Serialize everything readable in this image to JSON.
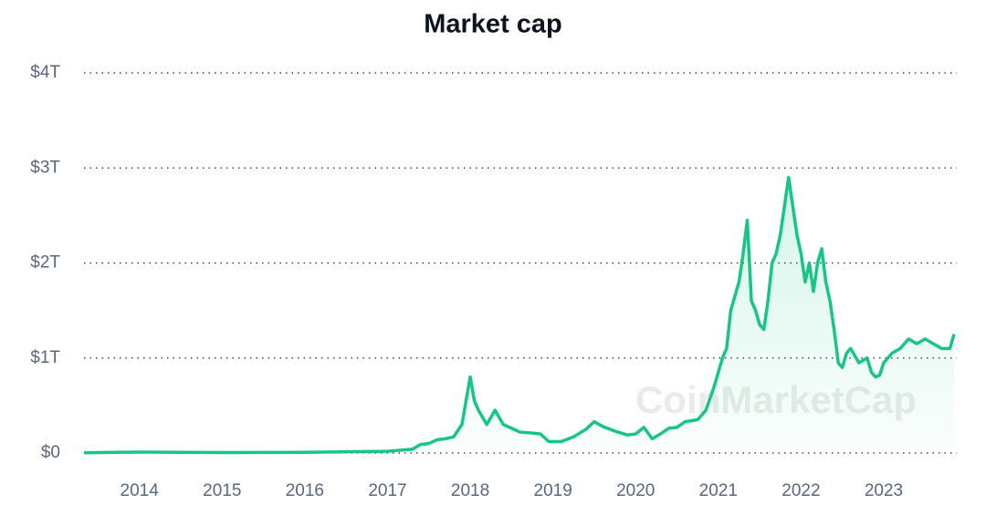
{
  "chart_data": {
    "type": "line",
    "title": "Market cap",
    "watermark": "CoinMarketCap",
    "x": [
      2013.33,
      2014.0,
      2015.0,
      2016.0,
      2017.0,
      2017.3,
      2017.4,
      2017.5,
      2017.6,
      2017.7,
      2017.8,
      2017.9,
      2017.95,
      2018.0,
      2018.05,
      2018.1,
      2018.2,
      2018.3,
      2018.4,
      2018.5,
      2018.6,
      2018.75,
      2018.85,
      2018.95,
      2019.1,
      2019.25,
      2019.4,
      2019.5,
      2019.6,
      2019.75,
      2019.9,
      2020.0,
      2020.1,
      2020.2,
      2020.3,
      2020.4,
      2020.5,
      2020.6,
      2020.75,
      2020.85,
      2020.95,
      2021.05,
      2021.1,
      2021.15,
      2021.25,
      2021.3,
      2021.35,
      2021.4,
      2021.45,
      2021.5,
      2021.55,
      2021.6,
      2021.65,
      2021.7,
      2021.75,
      2021.8,
      2021.85,
      2021.9,
      2021.95,
      2022.0,
      2022.05,
      2022.1,
      2022.15,
      2022.2,
      2022.25,
      2022.3,
      2022.35,
      2022.4,
      2022.45,
      2022.5,
      2022.55,
      2022.6,
      2022.7,
      2022.8,
      2022.85,
      2022.9,
      2022.95,
      2023.0,
      2023.1,
      2023.2,
      2023.3,
      2023.4,
      2023.5,
      2023.6,
      2023.7,
      2023.8,
      2023.85
    ],
    "series": [
      {
        "color": "#16c784",
        "values": [
          0.002,
          0.01,
          0.005,
          0.007,
          0.018,
          0.04,
          0.09,
          0.1,
          0.14,
          0.15,
          0.17,
          0.3,
          0.55,
          0.8,
          0.55,
          0.45,
          0.3,
          0.45,
          0.3,
          0.26,
          0.22,
          0.21,
          0.2,
          0.12,
          0.12,
          0.17,
          0.25,
          0.33,
          0.28,
          0.23,
          0.19,
          0.2,
          0.27,
          0.15,
          0.2,
          0.26,
          0.27,
          0.33,
          0.35,
          0.45,
          0.7,
          1.0,
          1.1,
          1.5,
          1.8,
          2.1,
          2.45,
          1.6,
          1.5,
          1.35,
          1.3,
          1.6,
          2.0,
          2.1,
          2.3,
          2.6,
          2.9,
          2.6,
          2.3,
          2.1,
          1.8,
          2.0,
          1.7,
          2.0,
          2.15,
          1.8,
          1.6,
          1.3,
          0.95,
          0.9,
          1.05,
          1.1,
          0.95,
          1.0,
          0.85,
          0.8,
          0.82,
          0.95,
          1.05,
          1.1,
          1.2,
          1.15,
          1.2,
          1.15,
          1.1,
          1.1,
          1.25
        ]
      }
    ],
    "xlim": [
      2013.33,
      2023.85
    ],
    "xticks": [
      2014,
      2015,
      2016,
      2017,
      2018,
      2019,
      2020,
      2021,
      2022,
      2023
    ],
    "ylim": [
      0,
      4
    ],
    "yticks": [
      {
        "value": 0,
        "label": "$0"
      },
      {
        "value": 1,
        "label": "$1T"
      },
      {
        "value": 2,
        "label": "$2T"
      },
      {
        "value": 3,
        "label": "$3T"
      },
      {
        "value": 4,
        "label": "$4T"
      }
    ],
    "grid": true
  }
}
